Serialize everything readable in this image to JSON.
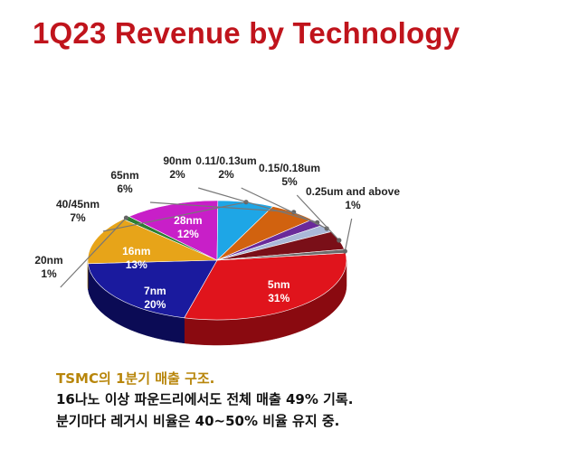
{
  "title": "1Q23 Revenue by Technology",
  "chart_data": {
    "type": "pie",
    "title": "1Q23 Revenue by Technology",
    "slices": [
      {
        "name": "5nm",
        "value": 31,
        "label": "31%",
        "color": "#e0141c",
        "side": "#8a0a10"
      },
      {
        "name": "7nm",
        "value": 20,
        "label": "20%",
        "color": "#1a1a9e",
        "side": "#0b0b55"
      },
      {
        "name": "16nm",
        "value": 13,
        "label": "13%",
        "color": "#e7a419",
        "side": "#8c6208"
      },
      {
        "name": "20nm",
        "value": 1,
        "label": "1%",
        "color": "#2e7d32",
        "side": "#174019"
      },
      {
        "name": "28nm",
        "value": 12,
        "label": "12%",
        "color": "#c81fc8",
        "side": "#6e0f6e"
      },
      {
        "name": "40/45nm",
        "value": 7,
        "label": "7%",
        "color": "#1ea6e6",
        "side": "#0e5f86"
      },
      {
        "name": "65nm",
        "value": 6,
        "label": "6%",
        "color": "#d1620f",
        "side": "#7a3808"
      },
      {
        "name": "90nm",
        "value": 2,
        "label": "2%",
        "color": "#6a2a9a",
        "side": "#3a1456"
      },
      {
        "name": "0.11/0.13um",
        "value": 2,
        "label": "2%",
        "color": "#aab8d8",
        "side": "#687898"
      },
      {
        "name": "0.15/0.18um",
        "value": 5,
        "label": "5%",
        "color": "#7a0f18",
        "side": "#3e0609"
      },
      {
        "name": "0.25um and above",
        "value": 1,
        "label": "1%",
        "color": "#6b6b6b",
        "side": "#383838"
      }
    ]
  },
  "caption": {
    "line1": "TSMC의 1분기 매출 구조.",
    "line2": "16나노 이상 파운드리에서도 전체 매출 49% 기록.",
    "line3": "분기마다 레거시 비율은 40~50% 비율 유지 중."
  }
}
